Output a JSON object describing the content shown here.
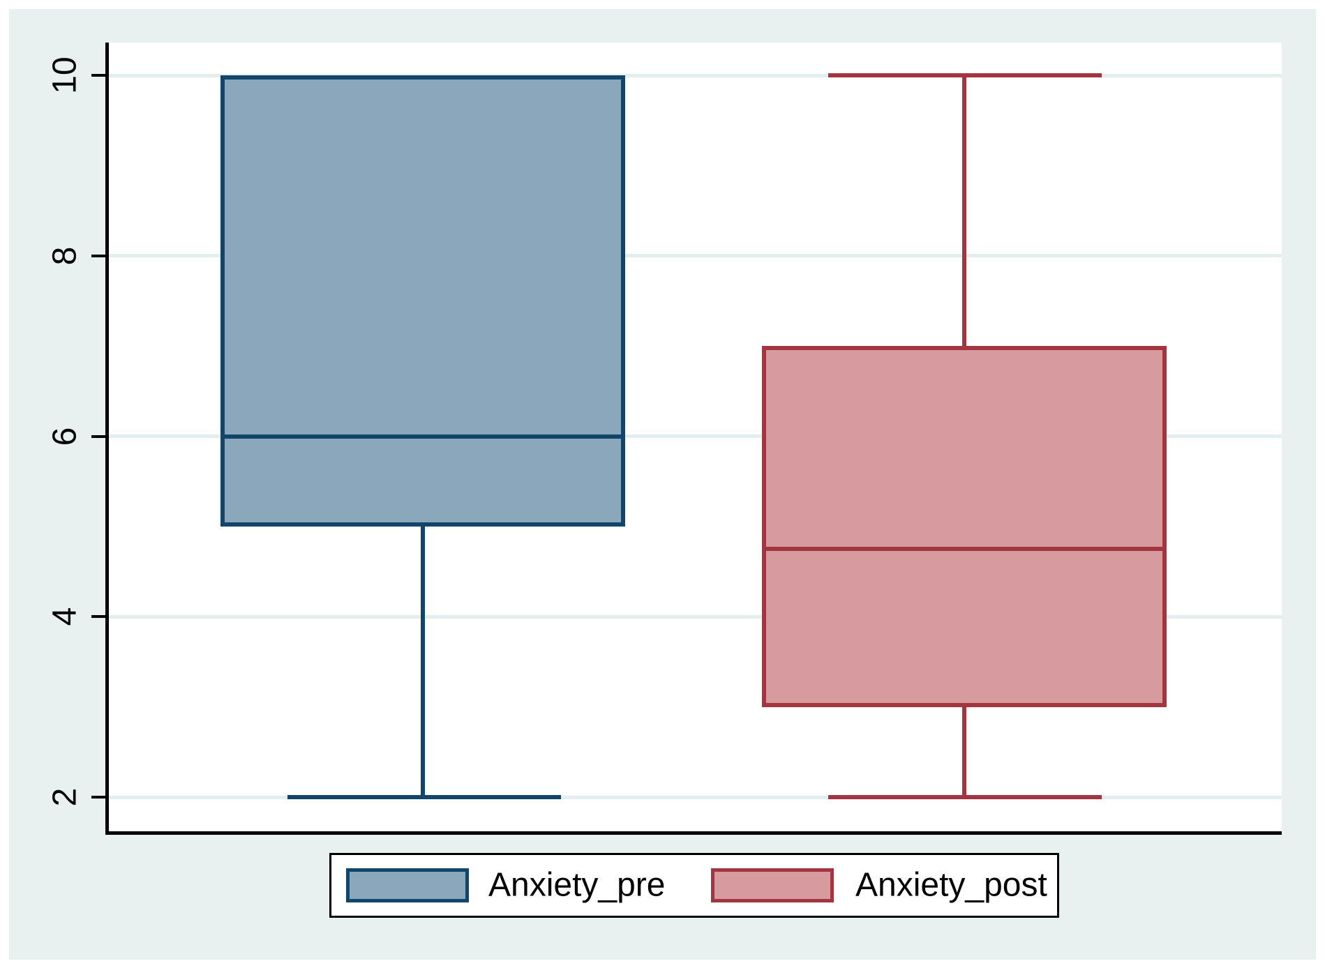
{
  "chart_data": {
    "type": "box",
    "orientation": "vertical",
    "title": "",
    "categories": [
      "Anxiety_pre",
      "Anxiety_post"
    ],
    "series": [
      {
        "name": "Anxiety_pre",
        "lower_whisker": 2,
        "q1": 5,
        "median": 6,
        "q3": 10,
        "upper_whisker": 10,
        "fill_color": "#8ba7bc",
        "line_color": "#12456a"
      },
      {
        "name": "Anxiety_post",
        "lower_whisker": 2,
        "q1": 3,
        "median": 4.75,
        "q3": 7,
        "upper_whisker": 10,
        "fill_color": "#d79a9e",
        "line_color": "#a2353f"
      }
    ],
    "y_axis": {
      "label": "",
      "ticks": [
        10,
        8,
        6,
        4,
        2
      ],
      "range": [
        1.6,
        10.4
      ]
    },
    "x_axis": {
      "label": "",
      "ticks": []
    },
    "grid": true,
    "legend": {
      "position": "bottom",
      "entries": [
        "Anxiety_pre",
        "Anxiety_post"
      ]
    },
    "style": {
      "region_bg": "#e8f1f0",
      "plot_bg": "#ffffff",
      "grid_color": "#e3efee",
      "axis_color": "#000000"
    }
  }
}
